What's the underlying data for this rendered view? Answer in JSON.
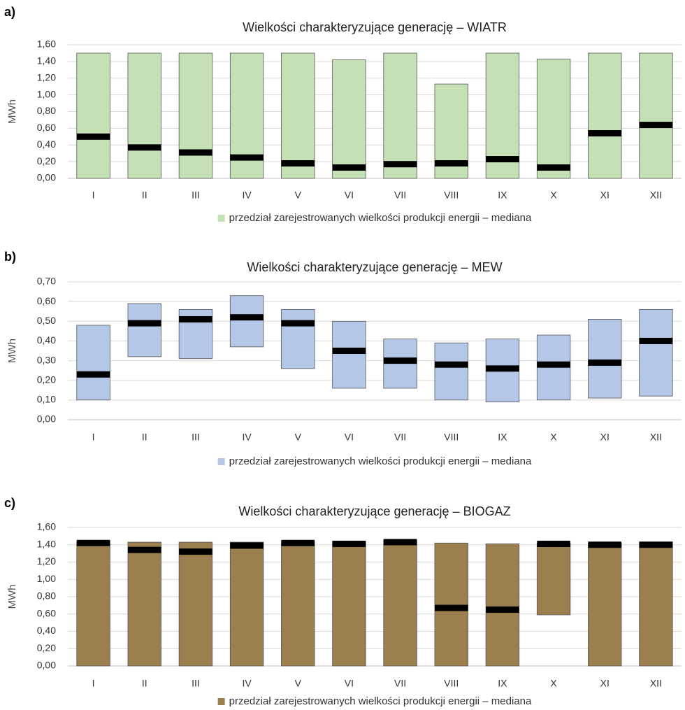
{
  "chart_data": [
    {
      "type": "range",
      "panel_label": "a)",
      "title": "Wielkości charakteryzujące generację – WIATR",
      "y_label": "MWh",
      "categories": [
        "I",
        "II",
        "III",
        "IV",
        "V",
        "VI",
        "VII",
        "VIII",
        "IX",
        "X",
        "XI",
        "XII"
      ],
      "series": [
        {
          "name": "przedział zarejestrowanych wielkości produkcji energii – mediana",
          "color": "#c5e0b4",
          "median_color": "#000000",
          "low": [
            0,
            0,
            0,
            0,
            0,
            0,
            0,
            0,
            0,
            0,
            0,
            0
          ],
          "high": [
            1.5,
            1.5,
            1.5,
            1.5,
            1.5,
            1.42,
            1.5,
            1.13,
            1.5,
            1.43,
            1.5,
            1.5
          ],
          "median": [
            0.5,
            0.37,
            0.31,
            0.25,
            0.18,
            0.13,
            0.17,
            0.18,
            0.23,
            0.13,
            0.54,
            0.64
          ]
        }
      ],
      "ylim": [
        0,
        1.6
      ],
      "yticks": [
        {
          "value": 0,
          "label": "0,00"
        },
        {
          "value": 0.2,
          "label": "0,20"
        },
        {
          "value": 0.4,
          "label": "0,40"
        },
        {
          "value": 0.6,
          "label": "0,60"
        },
        {
          "value": 0.8,
          "label": "0,80"
        },
        {
          "value": 1.0,
          "label": "1,00"
        },
        {
          "value": 1.2,
          "label": "1,20"
        },
        {
          "value": 1.4,
          "label": "1,40"
        },
        {
          "value": 1.6,
          "label": "1,60"
        }
      ],
      "grid": true
    },
    {
      "type": "range",
      "panel_label": "b)",
      "title": "Wielkości charakteryzujące generację – MEW",
      "y_label": "MWh",
      "categories": [
        "I",
        "II",
        "III",
        "IV",
        "V",
        "VI",
        "VII",
        "VIII",
        "IX",
        "X",
        "XI",
        "XII"
      ],
      "series": [
        {
          "name": "przedział zarejestrowanych wielkości produkcji energii – mediana",
          "color": "#b4c7e7",
          "median_color": "#000000",
          "low": [
            0.1,
            0.32,
            0.31,
            0.37,
            0.26,
            0.16,
            0.16,
            0.1,
            0.09,
            0.1,
            0.11,
            0.12
          ],
          "high": [
            0.48,
            0.59,
            0.56,
            0.63,
            0.56,
            0.5,
            0.41,
            0.39,
            0.41,
            0.43,
            0.51,
            0.56
          ],
          "median": [
            0.23,
            0.49,
            0.51,
            0.52,
            0.49,
            0.35,
            0.3,
            0.28,
            0.26,
            0.28,
            0.29,
            0.4
          ]
        }
      ],
      "ylim": [
        0,
        0.7
      ],
      "yticks": [
        {
          "value": 0,
          "label": "0,00"
        },
        {
          "value": 0.1,
          "label": "0,10"
        },
        {
          "value": 0.2,
          "label": "0,20"
        },
        {
          "value": 0.3,
          "label": "0,30"
        },
        {
          "value": 0.4,
          "label": "0,40"
        },
        {
          "value": 0.5,
          "label": "0,50"
        },
        {
          "value": 0.6,
          "label": "0,60"
        },
        {
          "value": 0.7,
          "label": "0,70"
        }
      ],
      "grid": true
    },
    {
      "type": "range",
      "panel_label": "c)",
      "title": "Wielkości charakteryzujące generację – BIOGAZ",
      "y_label": "MWh",
      "categories": [
        "I",
        "II",
        "III",
        "IV",
        "V",
        "VI",
        "VII",
        "VIII",
        "IX",
        "X",
        "XI",
        "XII"
      ],
      "series": [
        {
          "name": "przedział zarejestrowanych wielkości produkcji energii – mediana",
          "color": "#9c7f4f",
          "median_color": "#000000",
          "low": [
            0,
            0,
            0,
            0,
            0,
            0,
            0,
            0,
            0,
            0.59,
            0,
            0
          ],
          "high": [
            1.44,
            1.43,
            1.43,
            1.43,
            1.44,
            1.44,
            1.45,
            1.42,
            1.41,
            1.42,
            1.42,
            1.43
          ],
          "median": [
            1.42,
            1.34,
            1.32,
            1.39,
            1.42,
            1.41,
            1.43,
            0.67,
            0.65,
            1.41,
            1.4,
            1.4
          ]
        }
      ],
      "ylim": [
        0,
        1.6
      ],
      "yticks": [
        {
          "value": 0,
          "label": "0,00"
        },
        {
          "value": 0.2,
          "label": "0,20"
        },
        {
          "value": 0.4,
          "label": "0,40"
        },
        {
          "value": 0.6,
          "label": "0,60"
        },
        {
          "value": 0.8,
          "label": "0,80"
        },
        {
          "value": 1.0,
          "label": "1,00"
        },
        {
          "value": 1.2,
          "label": "1,20"
        },
        {
          "value": 1.4,
          "label": "1,40"
        },
        {
          "value": 1.6,
          "label": "1,60"
        }
      ],
      "grid": true
    }
  ]
}
